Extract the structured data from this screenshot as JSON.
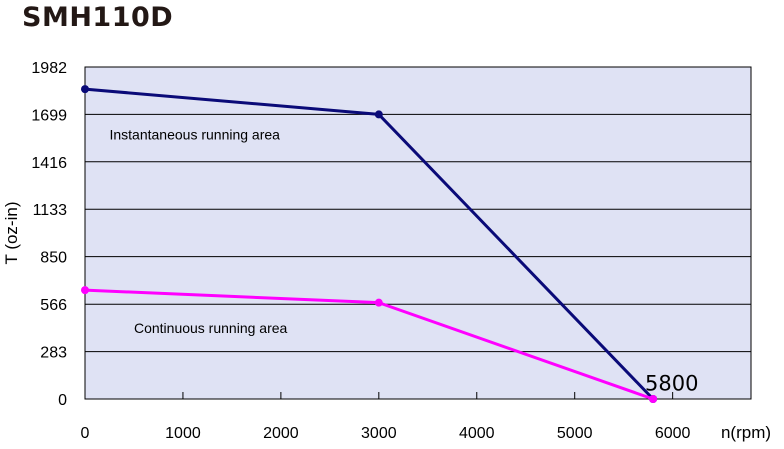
{
  "page_title": "SMH110D",
  "chart_data": {
    "type": "line",
    "title": "SMH110D",
    "xlabel": "n(rpm)",
    "ylabel": "T (oz-in)",
    "x_ticks": [
      "0",
      "1000",
      "2000",
      "3000",
      "4000",
      "5000",
      "6000"
    ],
    "y_ticks": [
      "0",
      "283",
      "566",
      "850",
      "1133",
      "1416",
      "1699",
      "1982"
    ],
    "xlim": [
      0,
      6800
    ],
    "ylim": [
      0,
      1982
    ],
    "grid": "horizontal",
    "plot_background": "#dfe2f4",
    "series": [
      {
        "color": "#0a0a78",
        "points": [
          [
            0,
            1850
          ],
          [
            3000,
            1699
          ],
          [
            5800,
            0
          ]
        ]
      },
      {
        "color": "#ff00ff",
        "points": [
          [
            0,
            650
          ],
          [
            3000,
            575
          ],
          [
            5800,
            0
          ]
        ]
      }
    ],
    "annotations": [
      {
        "text": "Instantaneous running area",
        "x": 250,
        "y": 1580,
        "style": "normal"
      },
      {
        "text": "Continuous running area",
        "x": 500,
        "y": 425,
        "style": "normal"
      },
      {
        "text": "5800",
        "x": 5800,
        "y": 80,
        "style": "large"
      }
    ]
  }
}
